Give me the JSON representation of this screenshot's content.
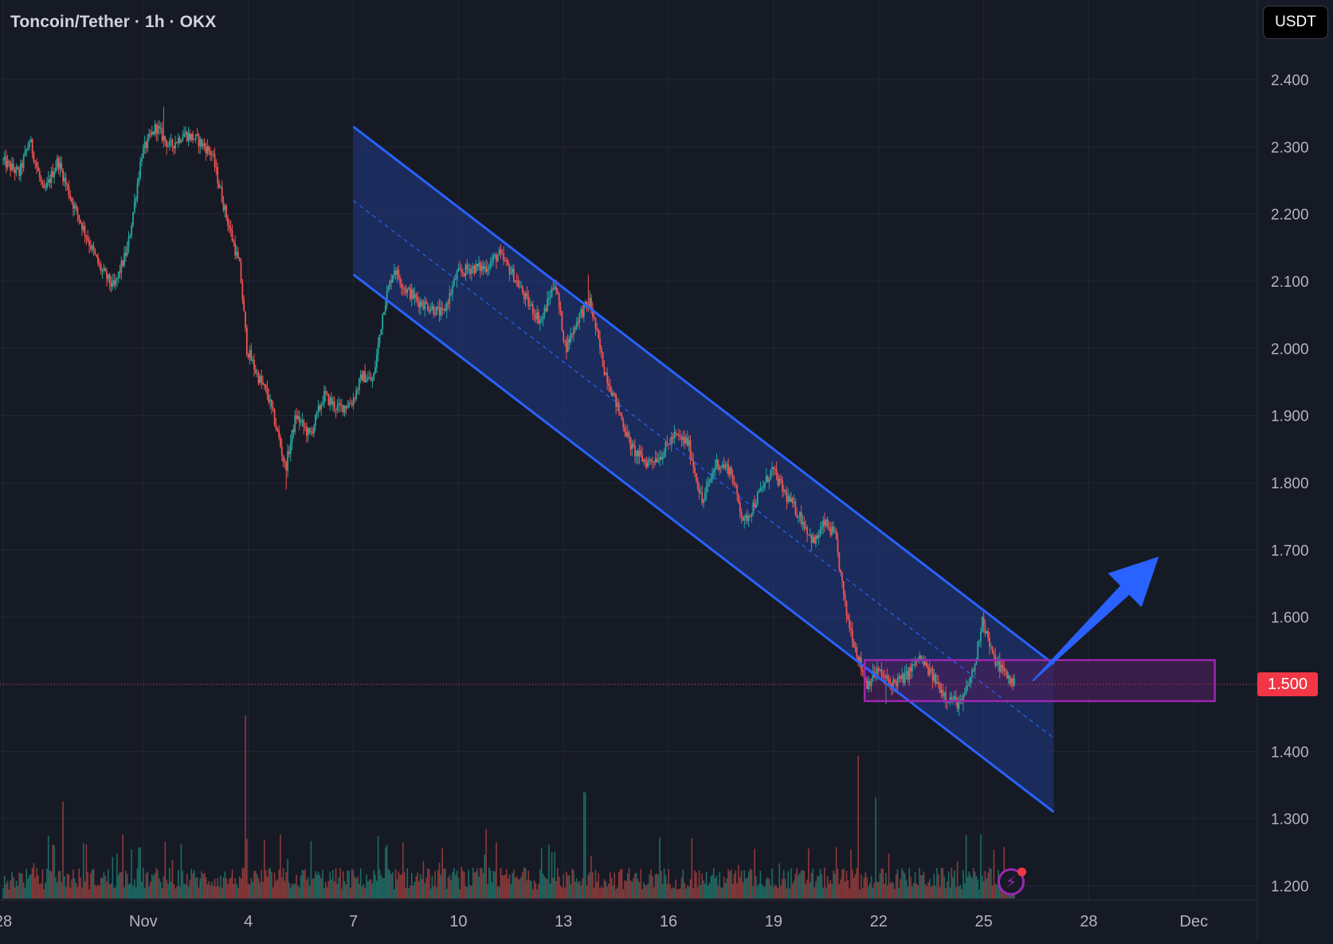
{
  "header": {
    "symbol_title": "Toncoin/Tether · 1h · OKX",
    "currency_button": "USDT"
  },
  "colors": {
    "background": "#161a25",
    "grid": "#232733",
    "candle_up": "#26a69a",
    "candle_down": "#ef5350",
    "channel_line": "#2962ff",
    "channel_fill": "#1f3a8a",
    "zone_border": "#9c27b0",
    "zone_fill": "#4a1f5a",
    "arrow": "#2962ff",
    "price_badge": "#f23645",
    "axis_text": "#b2b5be"
  },
  "price_badge": {
    "value": "1.500"
  },
  "lightning_icon": "lightning-icon",
  "chart_data": {
    "type": "candlestick",
    "title": "Toncoin/Tether · 1h · OKX",
    "y_unit": "USDT",
    "ylim": [
      1.18,
      2.48
    ],
    "y_ticks": [
      "2.400",
      "2.300",
      "2.200",
      "2.100",
      "2.000",
      "1.900",
      "1.800",
      "1.700",
      "1.600",
      "1.500",
      "1.400",
      "1.300",
      "1.200"
    ],
    "x_ticks": [
      {
        "label": "28",
        "day": 28
      },
      {
        "label": "Nov",
        "day": 32
      },
      {
        "label": "4",
        "day": 35
      },
      {
        "label": "7",
        "day": 38
      },
      {
        "label": "10",
        "day": 41
      },
      {
        "label": "13",
        "day": 44
      },
      {
        "label": "16",
        "day": 47
      },
      {
        "label": "19",
        "day": 50
      },
      {
        "label": "22",
        "day": 53
      },
      {
        "label": "25",
        "day": 56
      },
      {
        "label": "28",
        "day": 59
      },
      {
        "label": "Dec",
        "day": 62
      }
    ],
    "x_note": "day index counts days from Oct 0; Nov 1 = 32",
    "last_price": 1.5,
    "price_path": [
      [
        28.0,
        2.28
      ],
      [
        28.5,
        2.26
      ],
      [
        28.8,
        2.31
      ],
      [
        29.2,
        2.23
      ],
      [
        29.6,
        2.28
      ],
      [
        30.0,
        2.22
      ],
      [
        30.4,
        2.17
      ],
      [
        30.8,
        2.12
      ],
      [
        31.2,
        2.09
      ],
      [
        31.6,
        2.15
      ],
      [
        32.0,
        2.29
      ],
      [
        32.4,
        2.33
      ],
      [
        32.8,
        2.3
      ],
      [
        33.2,
        2.32
      ],
      [
        33.6,
        2.31
      ],
      [
        34.0,
        2.29
      ],
      [
        34.4,
        2.2
      ],
      [
        34.8,
        2.12
      ],
      [
        35.0,
        2.0
      ],
      [
        35.3,
        1.96
      ],
      [
        35.6,
        1.93
      ],
      [
        35.9,
        1.87
      ],
      [
        36.1,
        1.82
      ],
      [
        36.4,
        1.9
      ],
      [
        36.8,
        1.87
      ],
      [
        37.2,
        1.93
      ],
      [
        37.6,
        1.91
      ],
      [
        38.0,
        1.92
      ],
      [
        38.3,
        1.96
      ],
      [
        38.6,
        1.95
      ],
      [
        38.9,
        2.06
      ],
      [
        39.2,
        2.12
      ],
      [
        39.5,
        2.09
      ],
      [
        39.9,
        2.07
      ],
      [
        40.3,
        2.06
      ],
      [
        40.6,
        2.05
      ],
      [
        41.0,
        2.11
      ],
      [
        41.4,
        2.12
      ],
      [
        41.8,
        2.12
      ],
      [
        42.2,
        2.14
      ],
      [
        42.6,
        2.11
      ],
      [
        43.0,
        2.07
      ],
      [
        43.4,
        2.04
      ],
      [
        43.8,
        2.1
      ],
      [
        44.1,
        2.0
      ],
      [
        44.5,
        2.05
      ],
      [
        44.8,
        2.07
      ],
      [
        45.2,
        1.97
      ],
      [
        45.6,
        1.91
      ],
      [
        46.0,
        1.85
      ],
      [
        46.4,
        1.83
      ],
      [
        46.8,
        1.84
      ],
      [
        47.2,
        1.87
      ],
      [
        47.6,
        1.86
      ],
      [
        48.0,
        1.77
      ],
      [
        48.4,
        1.83
      ],
      [
        48.8,
        1.82
      ],
      [
        49.2,
        1.74
      ],
      [
        49.6,
        1.78
      ],
      [
        50.0,
        1.82
      ],
      [
        50.4,
        1.78
      ],
      [
        50.8,
        1.75
      ],
      [
        51.2,
        1.71
      ],
      [
        51.5,
        1.74
      ],
      [
        51.8,
        1.72
      ],
      [
        52.1,
        1.61
      ],
      [
        52.4,
        1.55
      ],
      [
        52.7,
        1.5
      ],
      [
        53.0,
        1.52
      ],
      [
        53.4,
        1.5
      ],
      [
        53.8,
        1.51
      ],
      [
        54.2,
        1.54
      ],
      [
        54.6,
        1.51
      ],
      [
        55.0,
        1.48
      ],
      [
        55.4,
        1.47
      ],
      [
        55.8,
        1.53
      ],
      [
        56.0,
        1.6
      ],
      [
        56.3,
        1.54
      ],
      [
        56.6,
        1.52
      ],
      [
        56.9,
        1.5
      ]
    ],
    "spikes": [
      {
        "day": 32.6,
        "high": 2.36
      },
      {
        "day": 36.1,
        "low": 1.79
      },
      {
        "day": 44.7,
        "high": 2.11
      },
      {
        "day": 53.2,
        "low": 1.47
      },
      {
        "day": 55.4,
        "low": 1.46
      },
      {
        "day": 56.0,
        "high": 1.61
      }
    ],
    "volume_spikes": [
      {
        "day": 34.9,
        "rel": 1.0
      },
      {
        "day": 52.4,
        "rel": 0.78
      },
      {
        "day": 52.9,
        "rel": 0.55
      },
      {
        "day": 29.7,
        "rel": 0.53
      },
      {
        "day": 44.6,
        "rel": 0.58
      },
      {
        "day": 35.9,
        "rel": 0.35
      },
      {
        "day": 55.9,
        "rel": 0.35
      },
      {
        "day": 31.9,
        "rel": 0.28
      },
      {
        "day": 38.9,
        "rel": 0.28
      },
      {
        "day": 41.8,
        "rel": 0.38
      }
    ],
    "drawings": {
      "channel": {
        "start_day": 38.0,
        "end_day": 58.0,
        "upper_start": 2.33,
        "upper_end": 1.53,
        "lower_start": 2.11,
        "lower_end": 1.31
      },
      "zone": {
        "start_day": 52.6,
        "end_day": 62.6,
        "top": 1.536,
        "bottom": 1.475
      },
      "arrow": {
        "from_day": 57.4,
        "from_price": 1.505,
        "to_day": 61.0,
        "to_price": 1.69
      }
    }
  }
}
